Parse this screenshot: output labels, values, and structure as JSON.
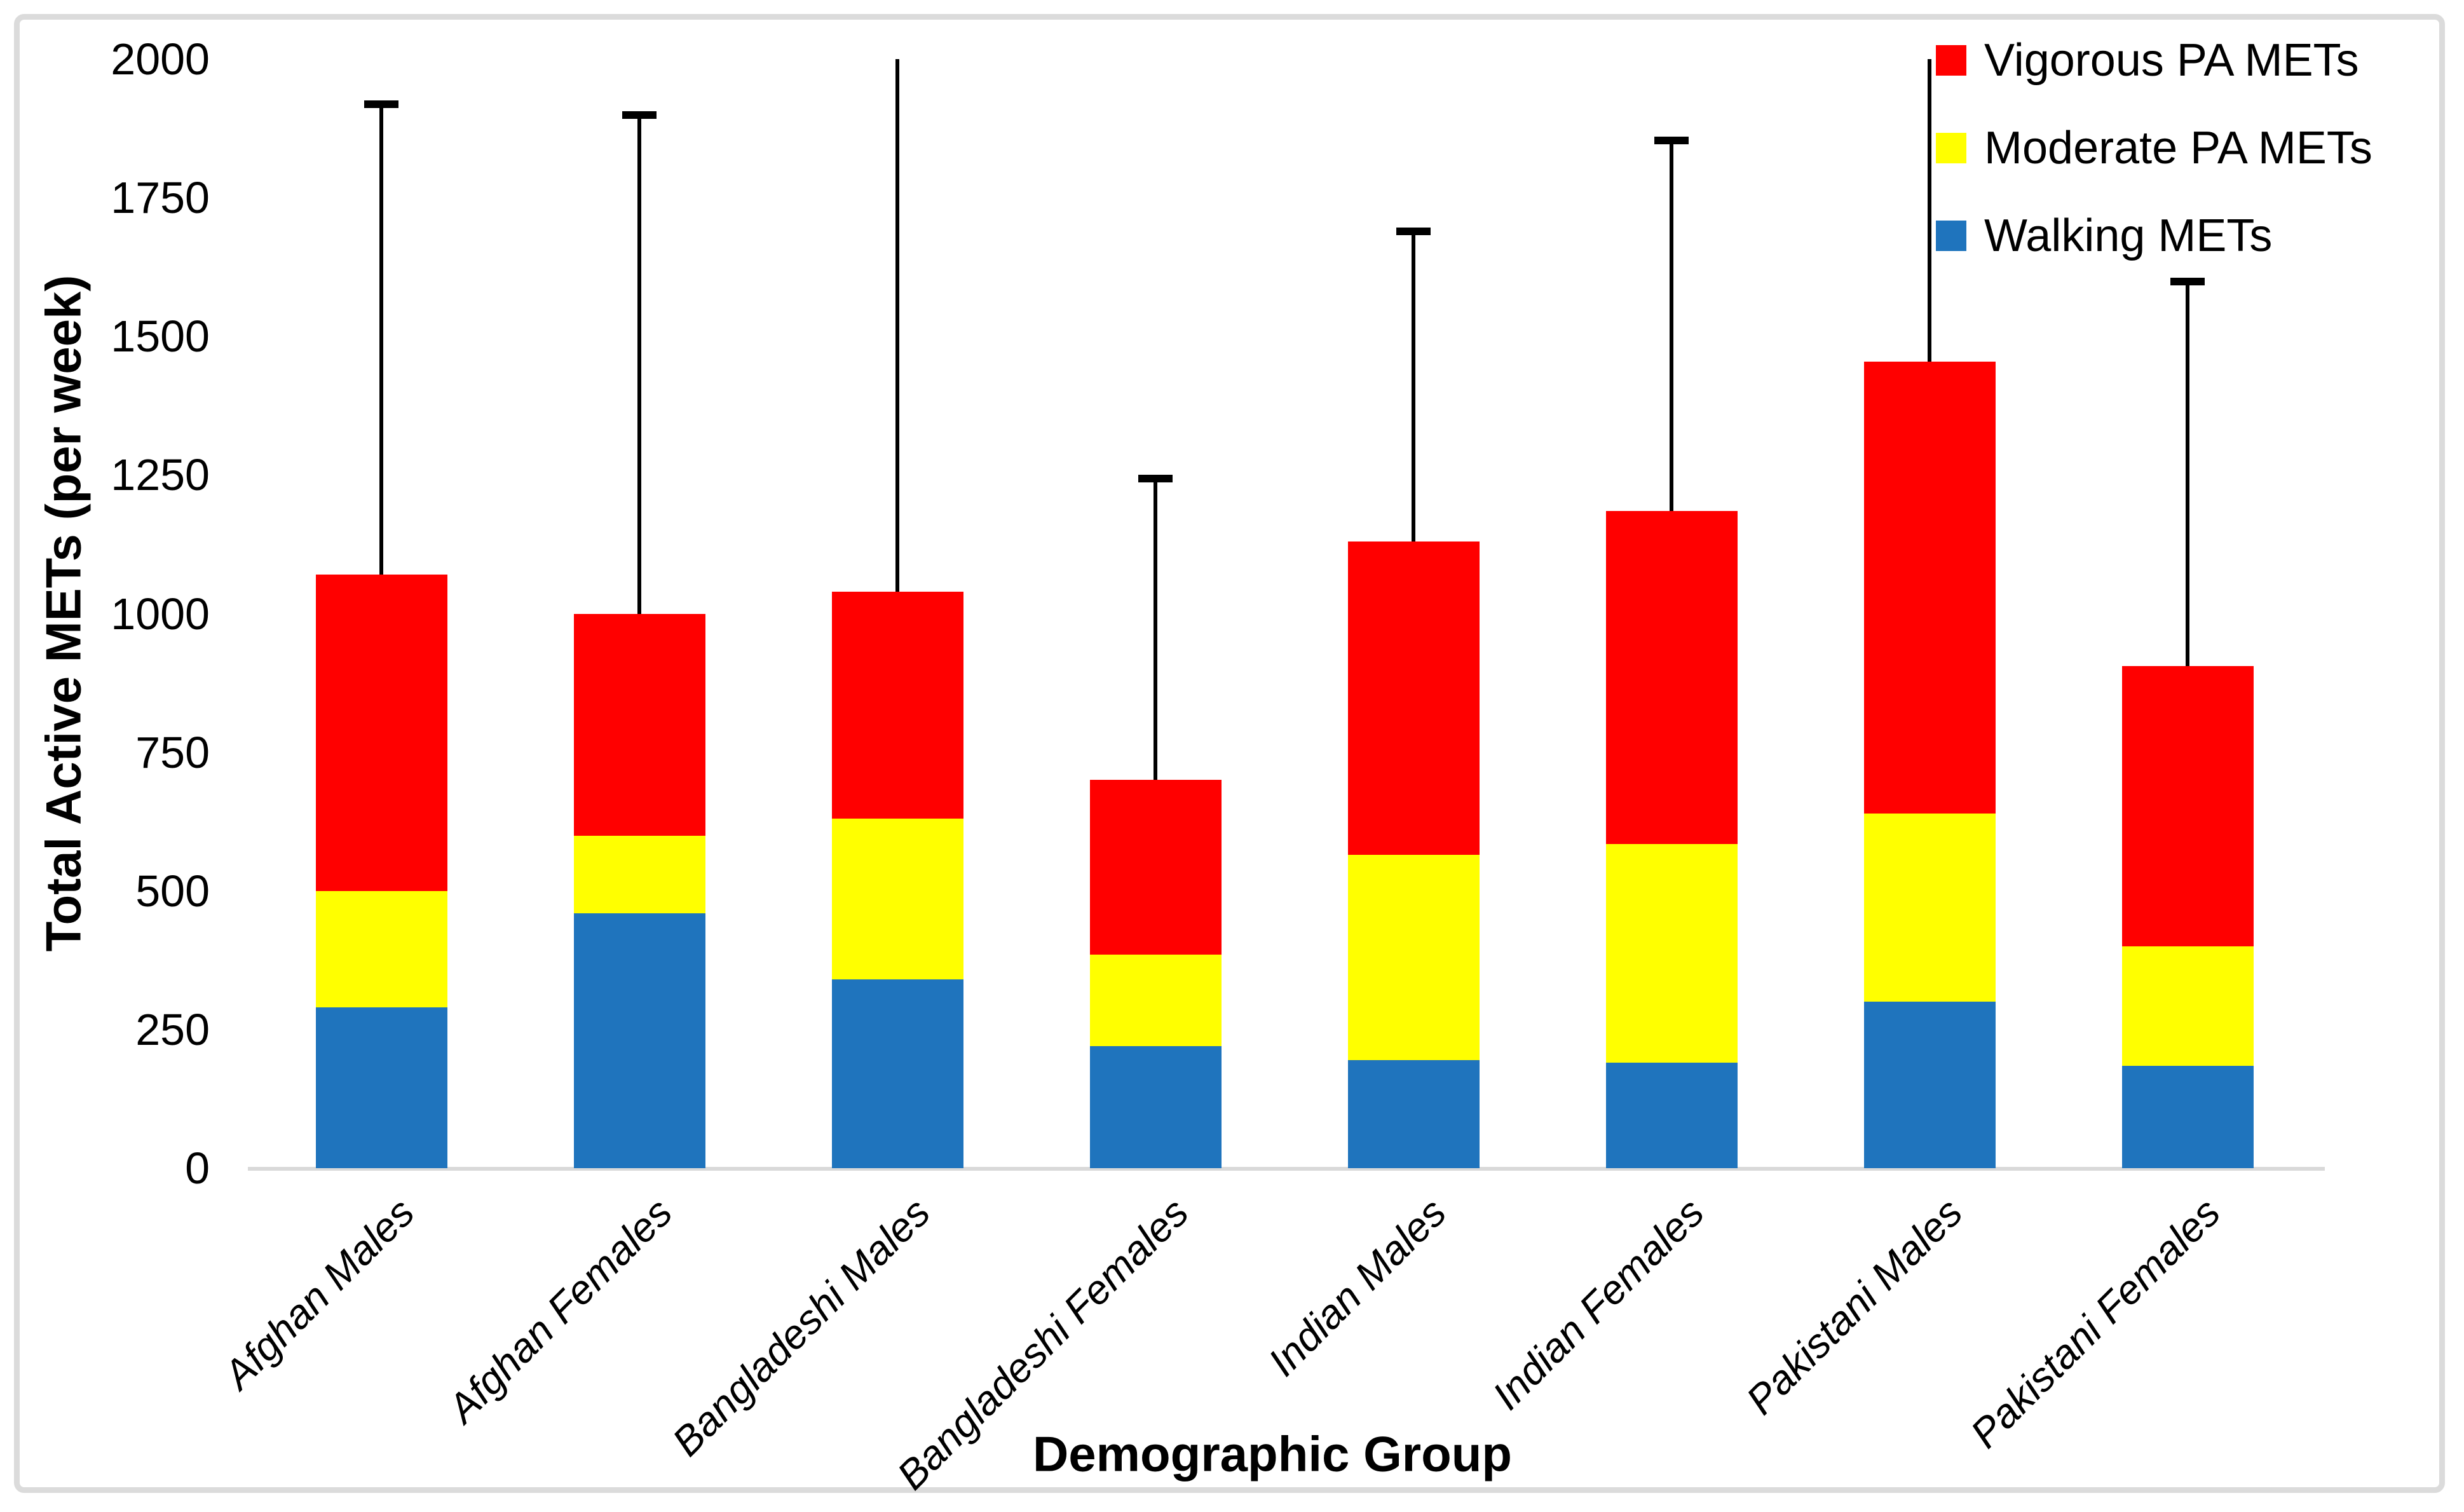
{
  "legend": {
    "items": [
      {
        "label": "Vigorous PA METs",
        "color": "#FF0000"
      },
      {
        "label": "Moderate PA METs",
        "color": "#FFFF00"
      },
      {
        "label": "Walking METs",
        "color": "#1F74BD"
      }
    ]
  },
  "y_axis": {
    "title": "Total Active METs (per week)",
    "ticks": [
      0,
      250,
      500,
      750,
      1000,
      1250,
      1500,
      1750,
      2000
    ]
  },
  "x_axis": {
    "title": "Demographic Group"
  },
  "colors": {
    "vigorous": "#FF0000",
    "moderate": "#FFFF00",
    "walking": "#1F74BD",
    "axis_line": "#D9D9D9",
    "frame": "#DBDBDB",
    "error_bar": "#000000"
  },
  "chart_data": {
    "type": "bar",
    "stacked": true,
    "title": "",
    "xlabel": "Demographic Group",
    "ylabel": "Total Active METs (per week)",
    "ylim": [
      0,
      2000
    ],
    "ytick_step": 250,
    "grid": false,
    "legend_position": "top-right",
    "categories": [
      "Afghan Males",
      "Afghan Females",
      "Bangladeshi Males",
      "Bangladeshi Females",
      "Indian Males",
      "Indian Females",
      "Pakistani Males",
      "Pakistani Females"
    ],
    "series": [
      {
        "name": "Walking METs",
        "color": "#1F74BD",
        "values": [
          290,
          460,
          340,
          220,
          195,
          190,
          300,
          185
        ]
      },
      {
        "name": "Moderate PA METs",
        "color": "#FFFF00",
        "values": [
          210,
          140,
          290,
          165,
          370,
          395,
          340,
          215
        ]
      },
      {
        "name": "Vigorous PA METs",
        "color": "#FF0000",
        "values": [
          570,
          400,
          410,
          315,
          565,
          600,
          815,
          505
        ]
      }
    ],
    "stack_totals": [
      1070,
      1000,
      1040,
      700,
      1130,
      1185,
      1455,
      905
    ],
    "error_bar_tops": [
      1920,
      1900,
      2000,
      1245,
      1690,
      1855,
      2000,
      1600
    ],
    "error_bar_has_cap": [
      true,
      true,
      false,
      true,
      true,
      true,
      false,
      true
    ]
  }
}
